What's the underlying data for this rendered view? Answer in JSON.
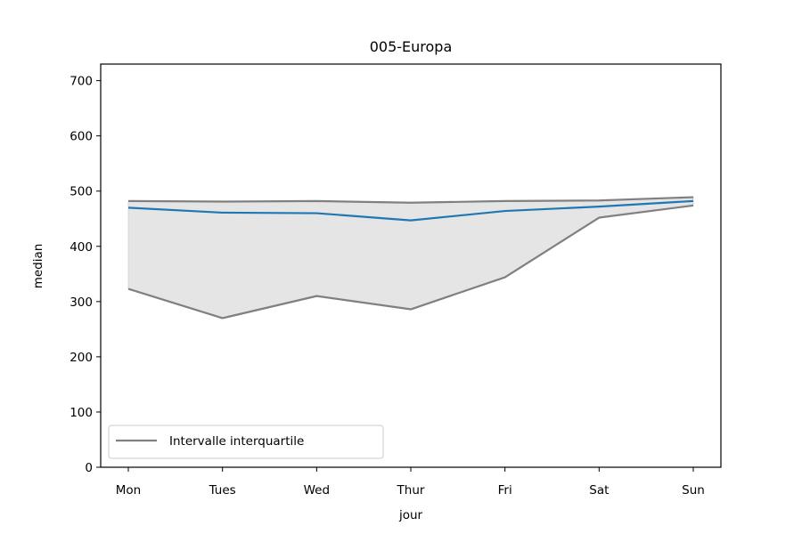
{
  "chart_data": {
    "type": "line",
    "title": "005-Europa",
    "xlabel": "jour",
    "ylabel": "median",
    "categories": [
      "Mon",
      "Tues",
      "Wed",
      "Thur",
      "Fri",
      "Sat",
      "Sun"
    ],
    "ylim": [
      0,
      730
    ],
    "yticks": [
      0,
      100,
      200,
      300,
      400,
      500,
      600,
      700
    ],
    "grid": false,
    "legend": {
      "position": "lower-left",
      "entries": [
        "Intervalle interquartile"
      ]
    },
    "series": [
      {
        "name": "",
        "role": "median",
        "color": "#1f77b4",
        "values": [
          470,
          461,
          460,
          447,
          464,
          472,
          482
        ]
      },
      {
        "name": "Intervalle interquartile",
        "role": "q3",
        "color": "#808080",
        "values": [
          482,
          481,
          482,
          479,
          482,
          483,
          489
        ]
      },
      {
        "name": "",
        "role": "q1",
        "color": "#808080",
        "values": [
          323,
          270,
          310,
          286,
          344,
          452,
          474
        ]
      }
    ],
    "fill_color": "#e5e5e5"
  }
}
